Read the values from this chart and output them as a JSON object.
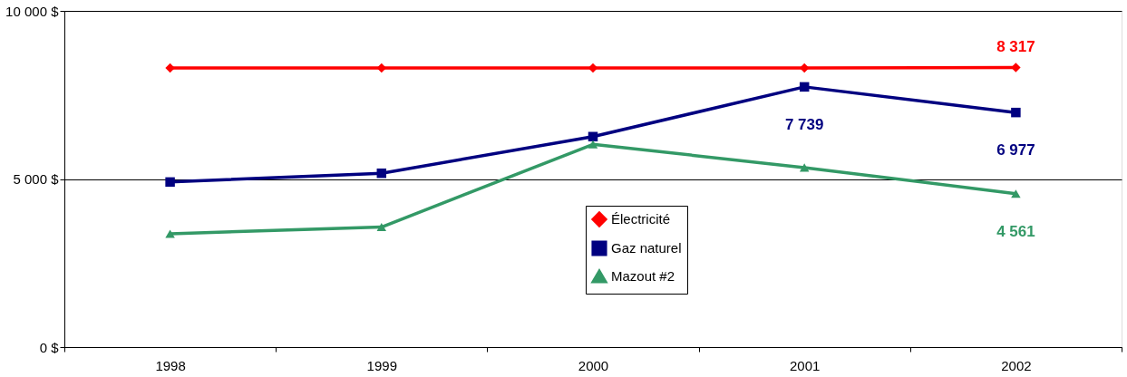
{
  "chart_data": {
    "type": "line",
    "categories": [
      "1998",
      "1999",
      "2000",
      "2001",
      "2002"
    ],
    "series": [
      {
        "name": "Électricité",
        "color": "#ff0000",
        "marker": "diamond",
        "values": [
          8300,
          8300,
          8300,
          8300,
          8317
        ],
        "value_labels": [
          null,
          null,
          null,
          null,
          "8 317"
        ]
      },
      {
        "name": "Gaz naturel",
        "color": "#000080",
        "marker": "square",
        "values": [
          4910,
          5170,
          6260,
          7739,
          6977
        ],
        "value_labels": [
          null,
          null,
          null,
          "7 739",
          "6 977"
        ]
      },
      {
        "name": "Mazout #2",
        "color": "#339966",
        "marker": "triangle",
        "values": [
          3370,
          3570,
          6030,
          5340,
          4561
        ],
        "value_labels": [
          null,
          null,
          null,
          null,
          "4 561"
        ]
      }
    ],
    "ylim": [
      0,
      10000
    ],
    "yticks": [
      {
        "value": 0,
        "label": "0 $"
      },
      {
        "value": 5000,
        "label": "5 000 $"
      },
      {
        "value": 10000,
        "label": "10 000 $"
      }
    ],
    "grid": "y",
    "legend": "bottom",
    "line_style": "solid"
  }
}
